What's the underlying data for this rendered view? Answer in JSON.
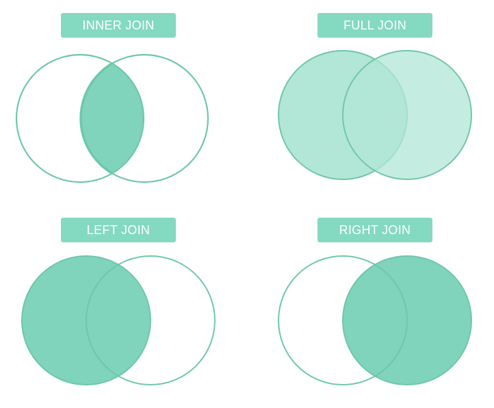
{
  "colors": {
    "label_bg": "#84d9c1",
    "stroke": "#6fc7ab",
    "fill_light": "#b2e6d6",
    "fill_dark": "#7fd4bb",
    "label_text": "#ffffff"
  },
  "diagrams": [
    {
      "id": "inner",
      "label": "INNER JOIN",
      "highlight": "intersection"
    },
    {
      "id": "full",
      "label": "FULL JOIN",
      "highlight": "union"
    },
    {
      "id": "left",
      "label": "LEFT JOIN",
      "highlight": "left"
    },
    {
      "id": "right",
      "label": "RIGHT JOIN",
      "highlight": "right"
    }
  ]
}
